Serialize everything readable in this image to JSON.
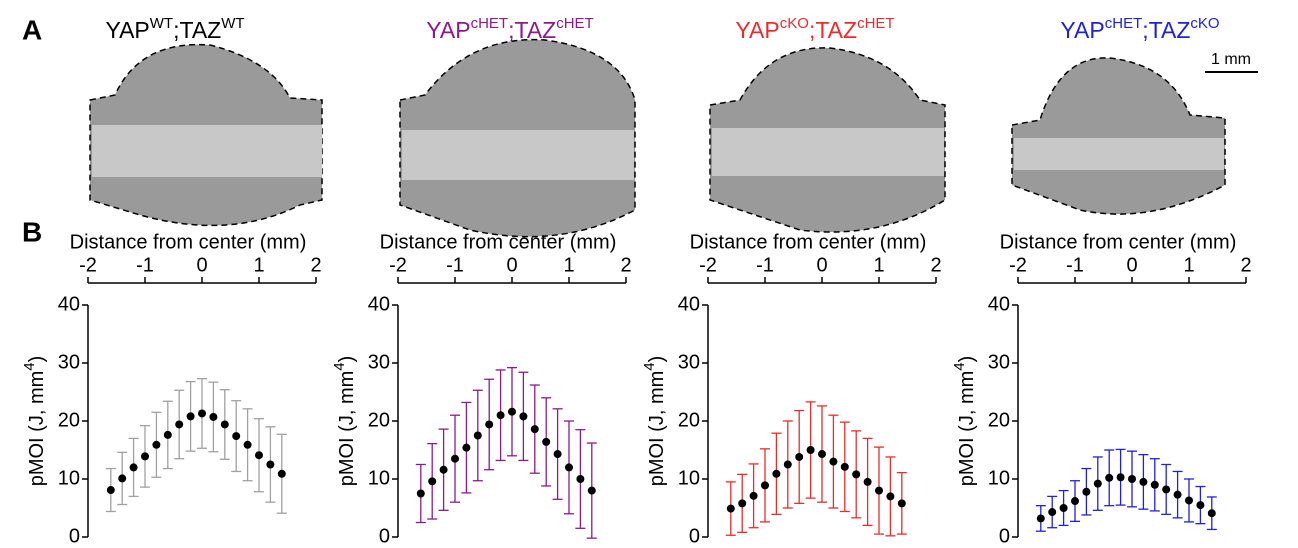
{
  "panel_a": {
    "label": "A",
    "scale_bar": "1 mm",
    "genotypes": [
      {
        "parts": [
          "YAP",
          "WT",
          ";TAZ",
          "WT"
        ],
        "color": "#000000"
      },
      {
        "parts": [
          "YAP",
          "cHET",
          ";TAZ",
          "cHET"
        ],
        "color": "#8b1a8b"
      },
      {
        "parts": [
          "YAP",
          "cKO",
          ";TAZ",
          "cHET"
        ],
        "color": "#ee2b2b"
      },
      {
        "parts": [
          "YAP",
          "cHET",
          ";TAZ",
          "cKO"
        ],
        "color": "#2020dd"
      }
    ]
  },
  "panel_b_label": "B",
  "chart_data": [
    {
      "type": "errorbar",
      "xlabel": "Distance from center (mm)",
      "ylabel": [
        "pMOI (J, mm",
        "4",
        ")"
      ],
      "x": [
        -1.6,
        -1.4,
        -1.2,
        -1.0,
        -0.8,
        -0.6,
        -0.4,
        -0.2,
        0.0,
        0.2,
        0.4,
        0.6,
        0.8,
        1.0,
        1.2,
        1.4
      ],
      "values": [
        8.1,
        10.1,
        12.0,
        13.9,
        15.9,
        17.6,
        19.4,
        20.8,
        21.3,
        20.7,
        19.4,
        17.4,
        15.9,
        14.1,
        12.5,
        10.9
      ],
      "errors": [
        3.7,
        4.5,
        5.0,
        5.3,
        5.6,
        5.8,
        5.9,
        6.0,
        6.0,
        6.0,
        6.0,
        6.1,
        6.2,
        6.3,
        6.5,
        6.8
      ],
      "color": "#a0a0a0",
      "xlim": [
        -2,
        2
      ],
      "xticks": [
        -2,
        -1,
        0,
        1,
        2
      ],
      "ylim": [
        0,
        40
      ],
      "yticks": [
        0,
        10,
        20,
        30,
        40
      ]
    },
    {
      "type": "errorbar",
      "xlabel": "Distance from center (mm)",
      "ylabel": [
        "pMOI (J, mm",
        "4",
        ")"
      ],
      "x": [
        -1.6,
        -1.4,
        -1.2,
        -1.0,
        -0.8,
        -0.6,
        -0.4,
        -0.2,
        0.0,
        0.2,
        0.4,
        0.6,
        0.8,
        1.0,
        1.2,
        1.4
      ],
      "values": [
        7.5,
        9.6,
        11.6,
        13.5,
        15.4,
        17.5,
        19.4,
        21.0,
        21.6,
        20.8,
        18.6,
        16.4,
        14.3,
        12.0,
        10.0,
        8.0
      ],
      "errors": [
        5.0,
        6.5,
        7.0,
        7.5,
        7.8,
        7.8,
        7.8,
        7.8,
        7.6,
        7.6,
        7.6,
        7.6,
        7.8,
        8.0,
        8.5,
        8.2
      ],
      "color": "#8b1a8b",
      "xlim": [
        -2,
        2
      ],
      "xticks": [
        -2,
        -1,
        0,
        1,
        2
      ],
      "ylim": [
        0,
        40
      ],
      "yticks": [
        0,
        10,
        20,
        30,
        40
      ]
    },
    {
      "type": "errorbar",
      "xlabel": "Distance from center (mm)",
      "ylabel": [
        "pMOI (J, mm",
        "4",
        ")"
      ],
      "x": [
        -1.6,
        -1.4,
        -1.2,
        -1.0,
        -0.8,
        -0.6,
        -0.4,
        -0.2,
        0.0,
        0.2,
        0.4,
        0.6,
        0.8,
        1.0,
        1.2,
        1.4
      ],
      "values": [
        4.9,
        5.8,
        7.1,
        8.9,
        10.9,
        12.5,
        13.8,
        15.0,
        14.3,
        13.0,
        12.1,
        10.8,
        9.5,
        8.0,
        7.0,
        5.8
      ],
      "errors": [
        4.6,
        5.0,
        5.5,
        6.3,
        7.0,
        7.5,
        8.0,
        8.3,
        8.3,
        8.0,
        7.7,
        7.5,
        7.5,
        7.5,
        6.8,
        5.3
      ],
      "color": "#ee2b2b",
      "xlim": [
        -2,
        2
      ],
      "xticks": [
        -2,
        -1,
        0,
        1,
        2
      ],
      "ylim": [
        0,
        40
      ],
      "yticks": [
        0,
        10,
        20,
        30,
        40
      ]
    },
    {
      "type": "errorbar",
      "xlabel": "Distance from center (mm)",
      "ylabel": [
        "pMOI (J, mm",
        "4",
        ")"
      ],
      "x": [
        -1.6,
        -1.4,
        -1.2,
        -1.0,
        -0.8,
        -0.6,
        -0.4,
        -0.2,
        0.0,
        0.2,
        0.4,
        0.6,
        0.8,
        1.0,
        1.2,
        1.4
      ],
      "values": [
        3.2,
        4.3,
        5.0,
        6.2,
        7.8,
        9.2,
        10.2,
        10.3,
        10.0,
        9.5,
        9.0,
        8.2,
        7.3,
        6.3,
        5.5,
        4.1
      ],
      "errors": [
        2.2,
        2.7,
        3.0,
        3.5,
        4.0,
        4.6,
        4.8,
        4.8,
        4.8,
        4.7,
        4.5,
        4.3,
        4.0,
        3.7,
        3.2,
        2.8
      ],
      "color": "#2020dd",
      "xlim": [
        -2,
        2
      ],
      "xticks": [
        -2,
        -1,
        0,
        1,
        2
      ],
      "ylim": [
        0,
        40
      ],
      "yticks": [
        0,
        10,
        20,
        30,
        40
      ]
    }
  ]
}
